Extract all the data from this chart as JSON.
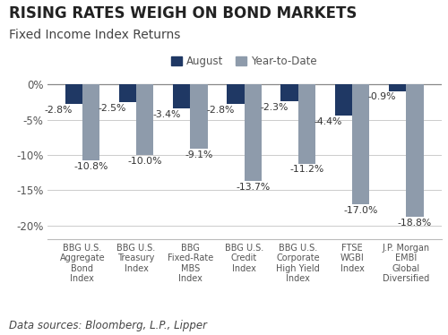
{
  "title": "RISING RATES WEIGH ON BOND MARKETS",
  "subtitle": "Fixed Income Index Returns",
  "categories": [
    "BBG U.S.\nAggregate\nBond\nIndex",
    "BBG U.S.\nTreasury\nIndex",
    "BBG\nFixed-Rate\nMBS\nIndex",
    "BBG U.S.\nCredit\nIndex",
    "BBG U.S.\nCorporate\nHigh Yield\nIndex",
    "FTSE\nWGBI\nIndex",
    "J.P. Morgan\nEMBI\nGlobal\nDiversified"
  ],
  "august_values": [
    -2.8,
    -2.5,
    -3.4,
    -2.8,
    -2.3,
    -4.4,
    -0.9
  ],
  "ytd_values": [
    -10.8,
    -10.0,
    -9.1,
    -13.7,
    -11.2,
    -17.0,
    -18.8
  ],
  "august_labels": [
    "-2.8%",
    "-2.5%",
    "-3.4%",
    "-2.8%",
    "-2.3%",
    "-4.4%",
    "-0.9%"
  ],
  "ytd_labels": [
    "-10.8%",
    "-10.0%",
    "-9.1%",
    "-13.7%",
    "-11.2%",
    "-17.0%",
    "-18.8%"
  ],
  "august_color": "#1f3864",
  "ytd_color": "#8e9bab",
  "legend_august": "August",
  "legend_ytd": "Year-to-Date",
  "ylim": [
    -22,
    2.5
  ],
  "yticks": [
    0,
    -5,
    -10,
    -15,
    -20
  ],
  "yticklabels": [
    "0%",
    "-5%",
    "-10%",
    "-15%",
    "-20%"
  ],
  "footnote": "Data sources: Bloomberg, L.P., Lipper",
  "background_color": "#ffffff",
  "bar_width": 0.32,
  "title_fontsize": 12,
  "subtitle_fontsize": 10,
  "label_fontsize": 7.8,
  "tick_fontsize": 8.5,
  "legend_fontsize": 8.5,
  "footnote_fontsize": 8.5
}
